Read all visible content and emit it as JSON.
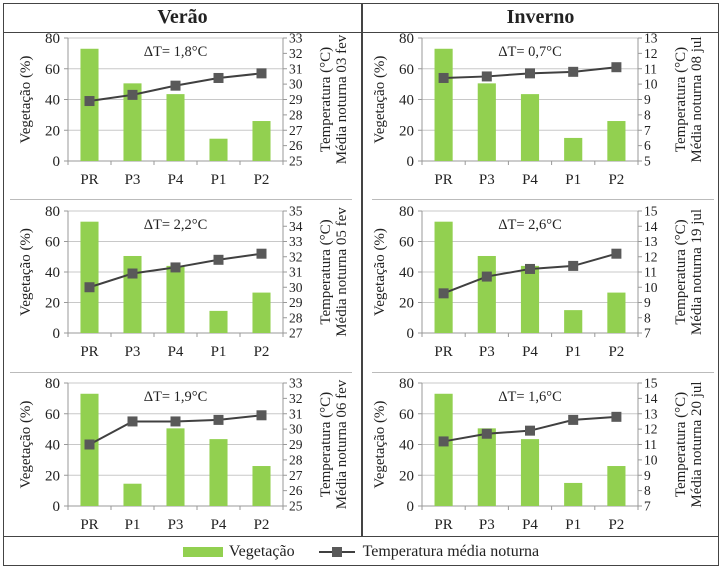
{
  "headers": {
    "left": "Verão",
    "right": "Inverno"
  },
  "legend": {
    "bar": "Vegetação",
    "line": "Temperatura média noturna"
  },
  "colors": {
    "bar": "#92d050",
    "line": "#404040",
    "marker": "#595959",
    "axis": "#999999"
  },
  "chart_data": [
    {
      "type": "bar+line",
      "season": "Verão",
      "title": "ΔT= 1,8°C",
      "categories": [
        "PR",
        "P3",
        "P4",
        "P1",
        "P2"
      ],
      "series": [
        {
          "name": "Vegetação",
          "axis": "left",
          "values": [
            73,
            50.5,
            43.5,
            14.5,
            26
          ]
        },
        {
          "name": "Temperatura média noturna",
          "axis": "right",
          "values": [
            28.9,
            29.3,
            29.9,
            30.4,
            30.7
          ]
        }
      ],
      "ylabel": "Vegetação (%)",
      "y2label": [
        "Temperatura (°C)",
        "Média noturna 03 fev"
      ],
      "ylim": [
        0,
        80
      ],
      "yticks": [
        0,
        20,
        40,
        60,
        80
      ],
      "y2lim": [
        25,
        33
      ],
      "y2ticks": [
        25,
        26,
        27,
        28,
        29,
        30,
        31,
        32,
        33
      ]
    },
    {
      "type": "bar+line",
      "season": "Inverno",
      "title": "ΔT= 0,7°C",
      "categories": [
        "PR",
        "P3",
        "P4",
        "P1",
        "P2"
      ],
      "series": [
        {
          "name": "Vegetação",
          "axis": "left",
          "values": [
            73,
            50.5,
            43.5,
            15,
            26
          ]
        },
        {
          "name": "Temperatura média noturna",
          "axis": "right",
          "values": [
            10.4,
            10.5,
            10.7,
            10.8,
            11.1
          ]
        }
      ],
      "ylabel": "Vegetação (%)",
      "y2label": [
        "Temperatura (°C)",
        "Média noturna 08 jul"
      ],
      "ylim": [
        0,
        80
      ],
      "yticks": [
        0,
        20,
        40,
        60,
        80
      ],
      "y2lim": [
        5,
        13
      ],
      "y2ticks": [
        5,
        6,
        7,
        8,
        9,
        10,
        11,
        12,
        13
      ]
    },
    {
      "type": "bar+line",
      "season": "Verão",
      "title": "ΔT= 2,2°C",
      "categories": [
        "PR",
        "P3",
        "P4",
        "P1",
        "P2"
      ],
      "series": [
        {
          "name": "Vegetação",
          "axis": "left",
          "values": [
            73,
            50.5,
            44,
            14.5,
            26.5
          ]
        },
        {
          "name": "Temperatura média noturna",
          "axis": "right",
          "values": [
            30.0,
            30.9,
            31.3,
            31.8,
            32.2
          ]
        }
      ],
      "ylabel": "Vegetação (%)",
      "y2label": [
        "Temperatura (°C)",
        "Média noturna 05 fev"
      ],
      "ylim": [
        0,
        80
      ],
      "yticks": [
        0,
        20,
        40,
        60,
        80
      ],
      "y2lim": [
        27,
        35
      ],
      "y2ticks": [
        27,
        28,
        29,
        30,
        31,
        32,
        33,
        34,
        35
      ]
    },
    {
      "type": "bar+line",
      "season": "Inverno",
      "title": "ΔT= 2,6°C",
      "categories": [
        "PR",
        "P3",
        "P4",
        "P1",
        "P2"
      ],
      "series": [
        {
          "name": "Vegetação",
          "axis": "left",
          "values": [
            73,
            50.5,
            44,
            15,
            26.5
          ]
        },
        {
          "name": "Temperatura média noturna",
          "axis": "right",
          "values": [
            9.6,
            10.7,
            11.2,
            11.4,
            12.2
          ]
        }
      ],
      "ylabel": "Vegetação (%)",
      "y2label": [
        "Temperatura (°C)",
        "Média noturna 19 jul"
      ],
      "ylim": [
        0,
        80
      ],
      "yticks": [
        0,
        20,
        40,
        60,
        80
      ],
      "y2lim": [
        7,
        15
      ],
      "y2ticks": [
        7,
        8,
        9,
        10,
        11,
        12,
        13,
        14,
        15
      ]
    },
    {
      "type": "bar+line",
      "season": "Verão",
      "title": "ΔT= 1,9°C",
      "categories": [
        "PR",
        "P1",
        "P3",
        "P4",
        "P2"
      ],
      "series": [
        {
          "name": "Vegetação",
          "axis": "left",
          "values": [
            73,
            14.5,
            50.5,
            43.5,
            26
          ]
        },
        {
          "name": "Temperatura média noturna",
          "axis": "right",
          "values": [
            29.0,
            30.5,
            30.5,
            30.6,
            30.9
          ]
        }
      ],
      "ylabel": "Vegetação (%)",
      "y2label": [
        "Temperatura (°C)",
        "Média noturna 06 fev"
      ],
      "ylim": [
        0,
        80
      ],
      "yticks": [
        0,
        20,
        40,
        60,
        80
      ],
      "y2lim": [
        25,
        33
      ],
      "y2ticks": [
        25,
        26,
        27,
        28,
        29,
        30,
        31,
        32,
        33
      ]
    },
    {
      "type": "bar+line",
      "season": "Inverno",
      "title": "ΔT= 1,6°C",
      "categories": [
        "PR",
        "P3",
        "P4",
        "P1",
        "P2"
      ],
      "series": [
        {
          "name": "Vegetação",
          "axis": "left",
          "values": [
            73,
            50.5,
            43.5,
            15,
            26
          ]
        },
        {
          "name": "Temperatura média noturna",
          "axis": "right",
          "values": [
            11.2,
            11.7,
            11.9,
            12.6,
            12.8
          ]
        }
      ],
      "ylabel": "Vegetação (%)",
      "y2label": [
        "Temperatura (°C)",
        "Média noturna 20 jul"
      ],
      "ylim": [
        0,
        80
      ],
      "yticks": [
        0,
        20,
        40,
        60,
        80
      ],
      "y2lim": [
        7,
        15
      ],
      "y2ticks": [
        7,
        8,
        9,
        10,
        11,
        12,
        13,
        14,
        15
      ]
    }
  ]
}
